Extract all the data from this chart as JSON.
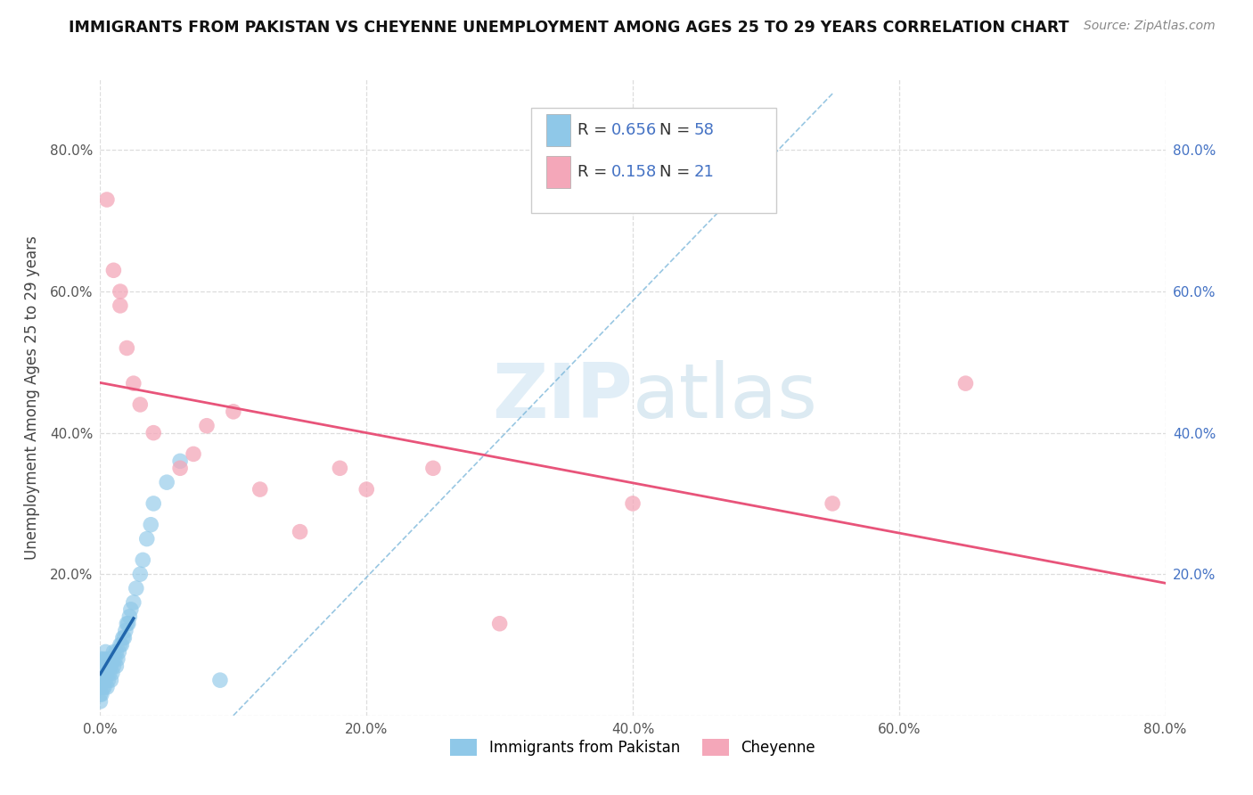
{
  "title": "IMMIGRANTS FROM PAKISTAN VS CHEYENNE UNEMPLOYMENT AMONG AGES 25 TO 29 YEARS CORRELATION CHART",
  "source": "Source: ZipAtlas.com",
  "ylabel": "Unemployment Among Ages 25 to 29 years",
  "xlim": [
    0.0,
    0.8
  ],
  "ylim": [
    0.0,
    0.9
  ],
  "xticks": [
    0.0,
    0.2,
    0.4,
    0.6,
    0.8
  ],
  "yticks": [
    0.0,
    0.2,
    0.4,
    0.6,
    0.8
  ],
  "xticklabels": [
    "0.0%",
    "20.0%",
    "40.0%",
    "60.0%",
    "80.0%"
  ],
  "yticklabels": [
    "",
    "20.0%",
    "40.0%",
    "60.0%",
    "80.0%"
  ],
  "pakistan_color": "#8fc8e8",
  "cheyenne_color": "#f4a7b9",
  "pakistan_line_color": "#2166ac",
  "cheyenne_line_color": "#e8547a",
  "pakistan_R": 0.656,
  "pakistan_N": 58,
  "cheyenne_R": 0.158,
  "cheyenne_N": 21,
  "pakistan_points_x": [
    0.0,
    0.0,
    0.0,
    0.0,
    0.0,
    0.0,
    0.0,
    0.0,
    0.0,
    0.0,
    0.001,
    0.001,
    0.001,
    0.002,
    0.002,
    0.002,
    0.003,
    0.003,
    0.004,
    0.004,
    0.004,
    0.005,
    0.005,
    0.005,
    0.006,
    0.006,
    0.007,
    0.007,
    0.008,
    0.008,
    0.009,
    0.009,
    0.01,
    0.01,
    0.011,
    0.012,
    0.012,
    0.013,
    0.014,
    0.015,
    0.016,
    0.017,
    0.018,
    0.019,
    0.02,
    0.021,
    0.022,
    0.023,
    0.025,
    0.027,
    0.03,
    0.032,
    0.035,
    0.038,
    0.04,
    0.05,
    0.06,
    0.09
  ],
  "pakistan_points_y": [
    0.02,
    0.03,
    0.04,
    0.05,
    0.055,
    0.06,
    0.065,
    0.07,
    0.075,
    0.08,
    0.03,
    0.05,
    0.07,
    0.04,
    0.06,
    0.08,
    0.04,
    0.06,
    0.05,
    0.07,
    0.09,
    0.04,
    0.06,
    0.08,
    0.05,
    0.07,
    0.06,
    0.08,
    0.05,
    0.07,
    0.06,
    0.08,
    0.07,
    0.09,
    0.08,
    0.07,
    0.09,
    0.08,
    0.09,
    0.1,
    0.1,
    0.11,
    0.11,
    0.12,
    0.13,
    0.13,
    0.14,
    0.15,
    0.16,
    0.18,
    0.2,
    0.22,
    0.25,
    0.27,
    0.3,
    0.33,
    0.36,
    0.05
  ],
  "cheyenne_points_x": [
    0.005,
    0.01,
    0.015,
    0.015,
    0.02,
    0.025,
    0.03,
    0.04,
    0.06,
    0.07,
    0.08,
    0.1,
    0.12,
    0.15,
    0.18,
    0.2,
    0.25,
    0.3,
    0.4,
    0.55,
    0.65
  ],
  "cheyenne_points_y": [
    0.73,
    0.63,
    0.6,
    0.58,
    0.52,
    0.47,
    0.44,
    0.4,
    0.35,
    0.37,
    0.41,
    0.43,
    0.32,
    0.26,
    0.35,
    0.32,
    0.35,
    0.13,
    0.3,
    0.3,
    0.47
  ],
  "ref_line_color": "#6dafd6",
  "watermark_color": "#c8dff0",
  "background_color": "#ffffff",
  "grid_color": "#dddddd"
}
